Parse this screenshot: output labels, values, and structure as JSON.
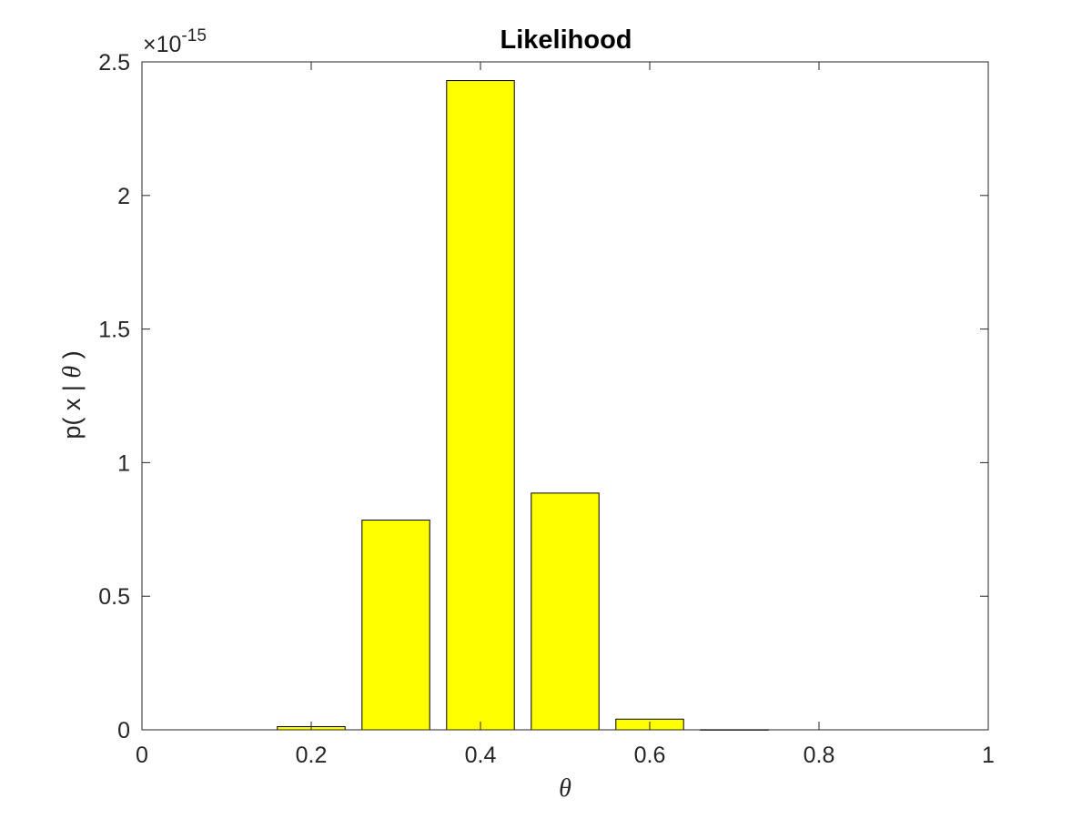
{
  "chart_data": {
    "type": "bar",
    "title": "Likelihood",
    "xlabel": "θ",
    "ylabel_prefix": "p( x | ",
    "ylabel_symbol": "θ",
    "ylabel_suffix": " )",
    "y_exponent_base": "×10",
    "y_exponent_power": "-15",
    "x": [
      0.1,
      0.2,
      0.3,
      0.4,
      0.5,
      0.6,
      0.7,
      0.8,
      0.9
    ],
    "values": [
      0,
      0.012,
      0.785,
      2.43,
      0.886,
      0.04,
      0.0005,
      0,
      0
    ],
    "bar_width": 0.08,
    "xlim": [
      0,
      1
    ],
    "ylim": [
      0,
      2.5
    ],
    "xticks": [
      "0",
      "0.2",
      "0.4",
      "0.6",
      "0.8",
      "1"
    ],
    "xtick_values": [
      0,
      0.2,
      0.4,
      0.6,
      0.8,
      1
    ],
    "yticks": [
      "0",
      "0.5",
      "1",
      "1.5",
      "2",
      "2.5"
    ],
    "ytick_values": [
      0,
      0.5,
      1,
      1.5,
      2,
      2.5
    ],
    "grid": false,
    "bar_color": "#ffff00",
    "edge_color": "#000000"
  }
}
